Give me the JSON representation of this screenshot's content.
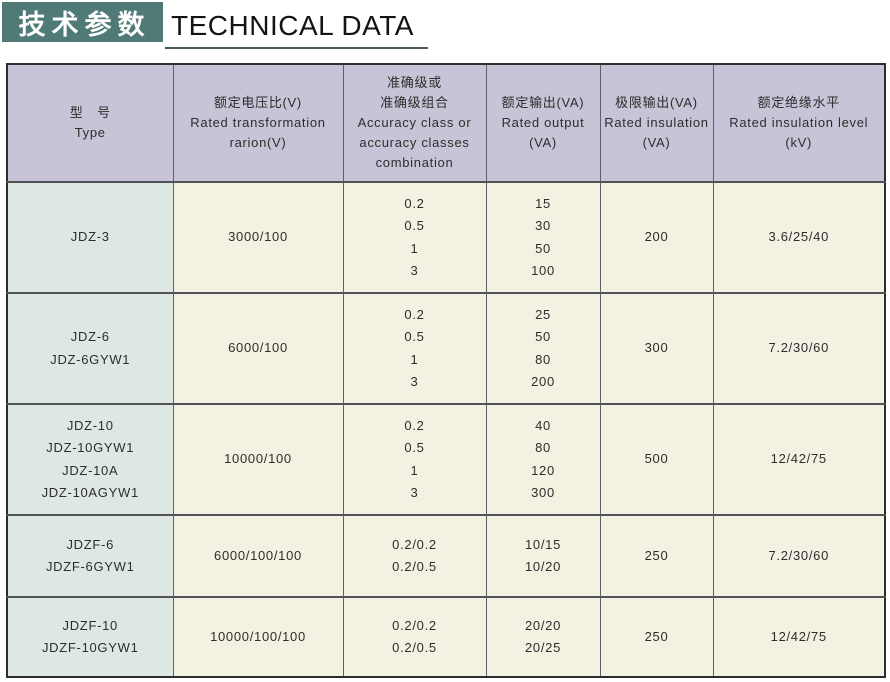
{
  "title": {
    "cn": "技术参数",
    "en": "TECHNICAL DATA"
  },
  "colors": {
    "title_bg": "#4f7a75",
    "underline": "#4b5a57",
    "header_bg": "#c8c3d6",
    "type_col_bg": "#dee8e2",
    "cell_bg": "#f3f1e2",
    "border_outer": "#2d2d30",
    "border_inner": "#60606a",
    "border_row": "#515158",
    "text": "#2d2d2d"
  },
  "table": {
    "headers": {
      "type": "型　号\nType",
      "ratio": "额定电压比(V)\nRated transformation\nrarion(V)",
      "accuracy": "准确级或\n准确级组合\nAccuracy class or\naccuracy classes\ncombination",
      "output": "额定输出(VA)\nRated output\n(VA)",
      "limit": "极限输出(VA)\nRated insulation\n(VA)",
      "level": "额定绝缘水平\nRated insulation level\n(kV)"
    },
    "rows": [
      {
        "type": "JDZ-3",
        "ratio": "3000/100",
        "accuracy": "0.2\n0.5\n1\n3",
        "output": "15\n30\n50\n100",
        "limit": "200",
        "level": "3.6/25/40"
      },
      {
        "type": "JDZ-6\nJDZ-6GYW1",
        "ratio": "6000/100",
        "accuracy": "0.2\n0.5\n1\n3",
        "output": "25\n50\n80\n200",
        "limit": "300",
        "level": "7.2/30/60"
      },
      {
        "type": "JDZ-10\nJDZ-10GYW1\nJDZ-10A\nJDZ-10AGYW1",
        "ratio": "10000/100",
        "accuracy": "0.2\n0.5\n1\n3",
        "output": "40\n80\n120\n300",
        "limit": "500",
        "level": "12/42/75"
      },
      {
        "type": "JDZF-6\nJDZF-6GYW1",
        "ratio": "6000/100/100",
        "accuracy": "0.2/0.2\n0.2/0.5",
        "output": "10/15\n10/20",
        "limit": "250",
        "level": "7.2/30/60"
      },
      {
        "type": "JDZF-10\nJDZF-10GYW1",
        "ratio": "10000/100/100",
        "accuracy": "0.2/0.2\n0.2/0.5",
        "output": "20/20\n20/25",
        "limit": "250",
        "level": "12/42/75"
      }
    ]
  }
}
